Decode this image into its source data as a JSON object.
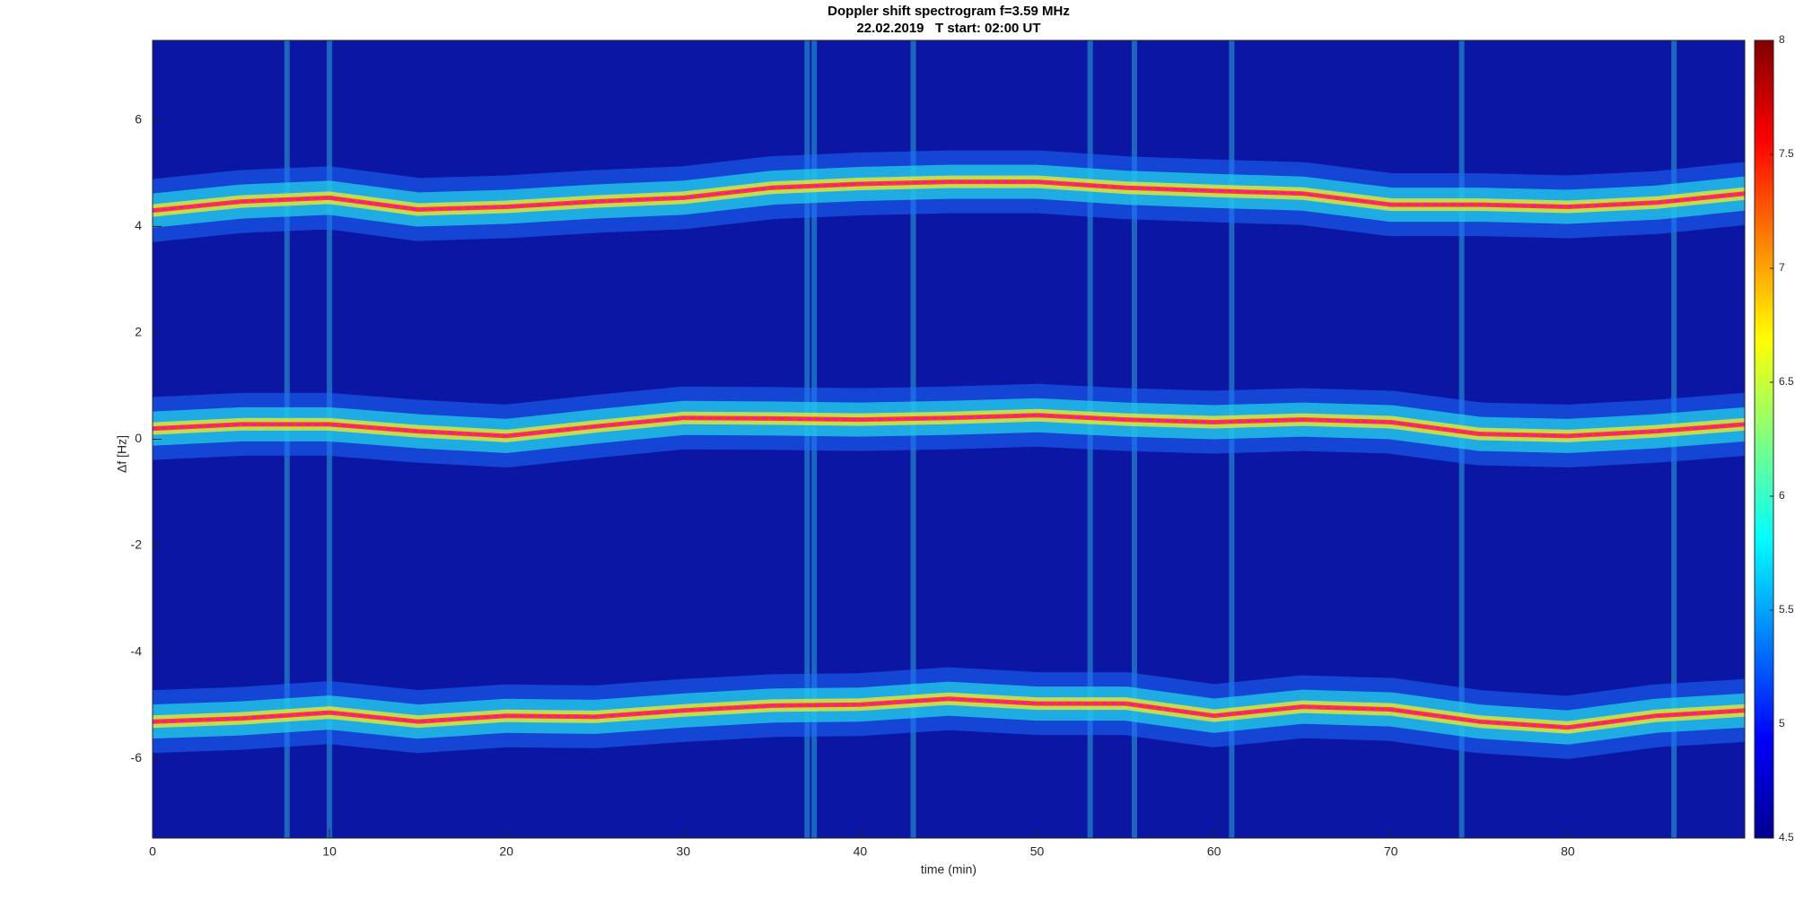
{
  "chart_data": {
    "type": "spectrogram",
    "title": "Doppler shift spectrogram f=3.59 MHz",
    "subtitle": "22.02.2019   T start: 02:00 UT",
    "x_label": "time (min)",
    "y_label": "Δf [Hz]",
    "x": [
      0,
      5,
      10,
      15,
      20,
      25,
      30,
      35,
      40,
      45,
      50,
      55,
      60,
      65,
      70,
      75,
      80,
      85,
      90
    ],
    "series": [
      {
        "color": "#ff00ff",
        "values": [
          4.3,
          4.47,
          4.54,
          4.32,
          4.37,
          4.47,
          4.54,
          4.73,
          4.8,
          4.84,
          4.84,
          4.73,
          4.67,
          4.62,
          4.41,
          4.41,
          4.37,
          4.45,
          4.62
        ]
      },
      {
        "color": "#ff00ff",
        "values": [
          0.2,
          0.28,
          0.28,
          0.15,
          0.06,
          0.24,
          0.4,
          0.39,
          0.37,
          0.4,
          0.45,
          0.37,
          0.32,
          0.37,
          0.32,
          0.1,
          0.06,
          0.15,
          0.28
        ]
      },
      {
        "color": "#ff00ff",
        "values": [
          -5.31,
          -5.25,
          -5.14,
          -5.31,
          -5.2,
          -5.22,
          -5.1,
          -5.01,
          -4.99,
          -4.88,
          -4.97,
          -4.97,
          -5.2,
          -5.03,
          -5.08,
          -5.31,
          -5.42,
          -5.2,
          -5.1
        ]
      }
    ],
    "interference_x": [
      7.6,
      10,
      37,
      37.4,
      43,
      53,
      55.5,
      61,
      74,
      86
    ],
    "background_color": "#0b17a2",
    "xlim": [
      0,
      90
    ],
    "xticks": [
      0,
      10,
      20,
      30,
      40,
      50,
      60,
      70,
      80
    ],
    "ylim": [
      -7.5,
      7.5
    ],
    "yticks": [
      -6,
      -4,
      -2,
      0,
      2,
      4,
      6
    ],
    "clim": [
      4.5,
      8
    ],
    "cticks": [
      4.5,
      5,
      5.5,
      6,
      6.5,
      7,
      7.5,
      8
    ]
  }
}
